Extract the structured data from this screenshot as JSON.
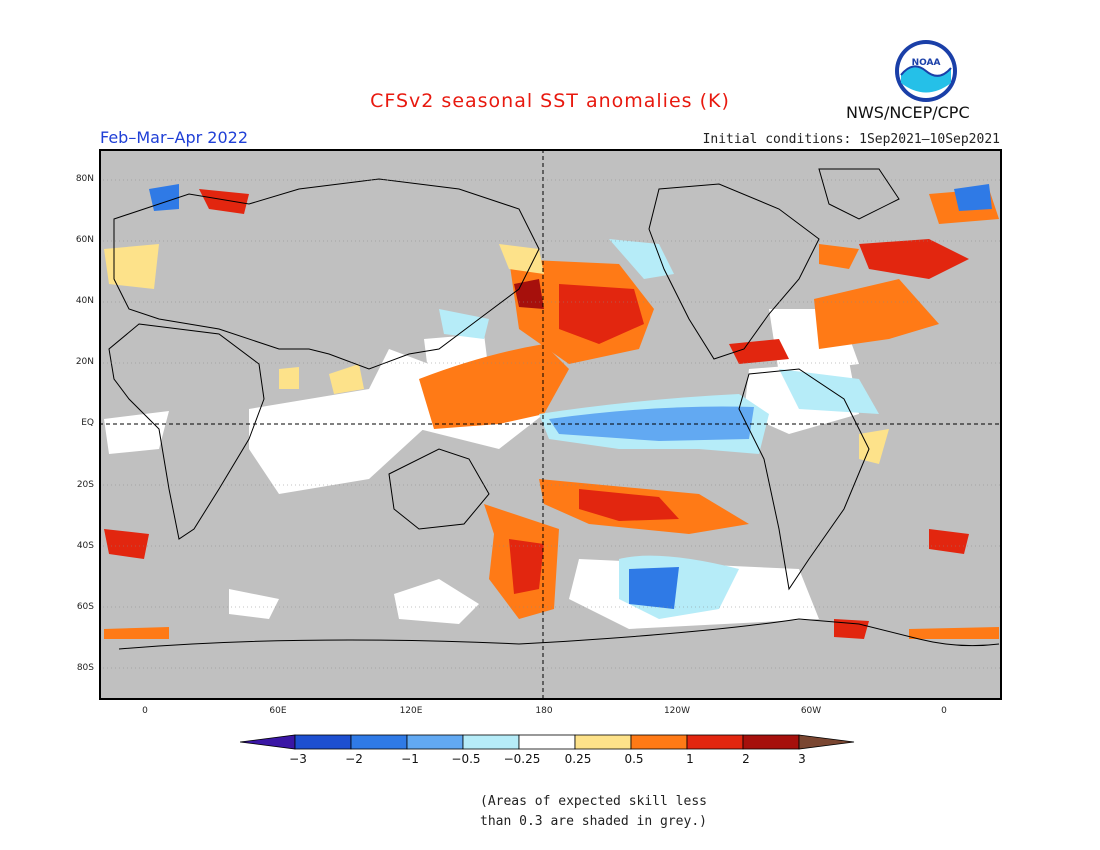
{
  "header": {
    "title": "CFSv2 seasonal SST anomalies (K)",
    "period": "Feb–Mar–Apr 2022",
    "initial_conditions": "Initial conditions: 1Sep2021–10Sep2021",
    "agency": "NWS/NCEP/CPC",
    "logo_text": "NOAA"
  },
  "map": {
    "lat_labels": [
      "80N",
      "60N",
      "40N",
      "20N",
      "EQ",
      "20S",
      "40S",
      "60S",
      "80S"
    ],
    "lon_labels": [
      "0",
      "60E",
      "120E",
      "180",
      "120W",
      "60W",
      "0"
    ],
    "colors": {
      "land": "#c0c0c0",
      "ocean_neutral": "#ffffff",
      "grey_low_skill": "#c0c0c0"
    }
  },
  "colorbar": {
    "labels": [
      "−3",
      "−2",
      "−1",
      "−0.5",
      "−0.25",
      "0.25",
      "0.5",
      "1",
      "2",
      "3"
    ],
    "colors": [
      "#3a16a5",
      "#1d4fd0",
      "#2f7ae6",
      "#62a9f2",
      "#b6ecf8",
      "#ffffff",
      "#fde28a",
      "#ff7a16",
      "#e2260f",
      "#a6100c",
      "#7a4631"
    ]
  },
  "note": {
    "line1": "(Areas of expected skill less",
    "line2": "than 0.3 are shaded in grey.)"
  }
}
